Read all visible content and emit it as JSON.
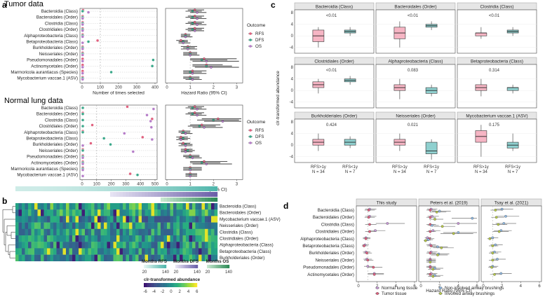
{
  "panel_a": {
    "letter": "a",
    "tumor_title": "Tumor data",
    "normal_title": "Normal lung data",
    "rows": [
      "Bacteroidia (Class)",
      "Bacteroidales (Order)",
      "Clostridia (Class)",
      "Clostridiales (Order)",
      "Alphaproteobacteria (Class)",
      "Betaproteobacteria (Class)",
      "Burkholderiales (Order)",
      "Neisseriales (Order)",
      "Pseudomonadales (Order)",
      "Actinomycetales (Order)",
      "Marmoricola aurantiacus (Species)",
      "Mycobacterium vaccae.1 (ASV)"
    ],
    "sel_xlabel": "Number of times selected",
    "hr_xlabel": "Hazard Ratio (95% CI)",
    "sel_ticks_tumor": [
      "0",
      "100",
      "200",
      "300",
      "400"
    ],
    "sel_ticks_normal": [
      "0",
      "100",
      "200",
      "300",
      "400",
      "500"
    ],
    "hr_ticks": [
      "0",
      "1",
      "2",
      "3"
    ],
    "legend_title": "Outcome",
    "legend_items": [
      {
        "name": "RFS",
        "color": "#e0607e"
      },
      {
        "name": "DFS",
        "color": "#3aa88a"
      },
      {
        "name": "OS",
        "color": "#b57cc8"
      }
    ]
  },
  "panel_b": {
    "letter": "b",
    "rows": [
      "Bacteroidia (Class)",
      "Bacteroidales (Order)",
      "Mycobacterium vaccae.1 (ASV)",
      "Neisseriales (Order)",
      "Clostridia (Class)",
      "Clostridiales (Order)",
      "Alphaproteobacteria (Class)",
      "Betaproteobacteria (Class)",
      "Burkholderiales (Order)"
    ],
    "legend_rfs": "Months RFS",
    "legend_dfs": "Months DFS",
    "legend_os": "Months OS",
    "month_ticks": [
      "20",
      "140"
    ],
    "clr_title": "clr-transformed abundance",
    "clr_ticks": [
      "-6",
      "-4",
      "-2",
      "0",
      "2",
      "4",
      "6"
    ]
  },
  "panel_c": {
    "letter": "c",
    "ylabel": "clr-transformed abundance",
    "yticks": [
      "8",
      "4",
      "0",
      "-4"
    ],
    "xcats": [
      "RFS>1y",
      "RFS<1y"
    ],
    "ncats": [
      "N = 34",
      "N = 7"
    ],
    "facets": [
      {
        "name": "Bacteroidia (Class)",
        "p": "<0.01"
      },
      {
        "name": "Bacteroidales (Order)",
        "p": "<0.01"
      },
      {
        "name": "Clostridia (Class)",
        "p": "<0.01"
      },
      {
        "name": "Clostridiales (Order)",
        "p": "<0.01"
      },
      {
        "name": "Alphaproteobacteria (Class)",
        "p": "0.083"
      },
      {
        "name": "Betaproteobacteria (Class)",
        "p": "0.314"
      },
      {
        "name": "Burkholderiales (Order)",
        "p": "0.424"
      },
      {
        "name": "Neisseriales (Order)",
        "p": "0.021"
      },
      {
        "name": "Mycobacterium vaccae.1 (ASV)",
        "p": "0.175"
      }
    ]
  },
  "panel_d": {
    "letter": "d",
    "studies": [
      "This study",
      "Peters et al. (2019)",
      "Tsay et al. (2021)"
    ],
    "rows": [
      "Bacteroidia (Class)",
      "Bacteroidales (Order)",
      "Clostridia (Class)",
      "Clostridiales (Order)",
      "Alphaproteobacteria (Class)",
      "Betaproteobacteria (Class)",
      "Burkholderiales (Order)",
      "Neisseriales (Order)",
      "Pseudomonadales (Order)",
      "Actinomycetales (Order)"
    ],
    "xticks": [
      "0",
      "2",
      "4",
      "6"
    ],
    "xlabel": "Hazard Ratio (95% CI)",
    "legend_items": [
      {
        "name": "Normal lung tissue",
        "color": "#c79ad6"
      },
      {
        "name": "Non-involved airway brushings",
        "color": "#8fb8e0"
      },
      {
        "name": "Tumor tissue",
        "color": "#e0607e"
      },
      {
        "name": "Involved airway brushings",
        "color": "#b7c94a"
      }
    ]
  },
  "chart_data": [
    {
      "type": "scatter",
      "title": "Tumor data",
      "xlabel": "Number of times selected",
      "categories": [
        "Bacteroidia (Class)",
        "Bacteroidales (Order)",
        "Clostridia (Class)",
        "Clostridiales (Order)",
        "Alphaproteobacteria (Class)",
        "Betaproteobacteria (Class)",
        "Burkholderiales (Order)",
        "Neisseriales (Order)",
        "Pseudomonadales (Order)",
        "Actinomycetales (Order)",
        "Marmoricola aurantiacus (Species)",
        "Mycobacterium vaccae.1 (ASV)"
      ],
      "xlim": [
        0,
        400
      ],
      "series": [
        {
          "name": "RFS",
          "values": [
            5,
            3,
            3,
            3,
            3,
            85,
            3,
            3,
            3,
            3,
            3,
            3
          ]
        },
        {
          "name": "DFS",
          "values": [
            3,
            3,
            3,
            3,
            3,
            35,
            3,
            3,
            390,
            385,
            160,
            3
          ]
        },
        {
          "name": "OS",
          "values": [
            35,
            3,
            3,
            3,
            3,
            3,
            3,
            3,
            3,
            3,
            3,
            3
          ]
        }
      ]
    },
    {
      "type": "scatter",
      "title": "Normal lung data",
      "xlabel": "Number of times selected",
      "categories": [
        "Bacteroidia (Class)",
        "Bacteroidales (Order)",
        "Clostridia (Class)",
        "Clostridiales (Order)",
        "Alphaproteobacteria (Class)",
        "Betaproteobacteria (Class)",
        "Burkholderiales (Order)",
        "Neisseriales (Order)",
        "Pseudomonadales (Order)",
        "Actinomycetales (Order)",
        "Marmoricola aurantiacus (Species)",
        "Mycobacterium vaccae.1 (ASV)"
      ],
      "xlim": [
        0,
        500
      ],
      "series": [
        {
          "name": "RFS",
          "values": [
            310,
            5,
            480,
            70,
            5,
            415,
            60,
            5,
            5,
            5,
            5,
            330
          ]
        },
        {
          "name": "DFS",
          "values": [
            5,
            5,
            5,
            5,
            5,
            150,
            195,
            5,
            5,
            5,
            5,
            380
          ]
        },
        {
          "name": "OS",
          "values": [
            490,
            445,
            470,
            475,
            290,
            480,
            5,
            350,
            5,
            5,
            5,
            5
          ]
        }
      ]
    },
    {
      "type": "scatter",
      "title": "Tumor data hazard ratios",
      "xlabel": "Hazard Ratio (95% CI)",
      "xlim": [
        0,
        3.2
      ],
      "categories": [
        "Bacteroidia (Class)",
        "Bacteroidales (Order)",
        "Clostridia (Class)",
        "Clostridiales (Order)",
        "Alphaproteobacteria (Class)",
        "Betaproteobacteria (Class)",
        "Burkholderiales (Order)",
        "Neisseriales (Order)",
        "Pseudomonadales (Order)",
        "Actinomycetales (Order)",
        "Marmoricola aurantiacus (Species)",
        "Mycobacterium vaccae.1 (ASV)"
      ],
      "series": [
        {
          "name": "RFS",
          "values": [
            1.2,
            1.2,
            1.2,
            1.2,
            0.8,
            0.6,
            0.9,
            1.0,
            1.6,
            1.7,
            1.1,
            1.0
          ],
          "lo": [
            0.9,
            0.9,
            0.9,
            0.9,
            0.6,
            0.4,
            0.6,
            0.7,
            1.0,
            1.1,
            0.7,
            0.7
          ],
          "hi": [
            1.6,
            1.6,
            1.6,
            1.6,
            1.0,
            0.9,
            1.3,
            1.3,
            3.0,
            2.4,
            1.7,
            1.4
          ]
        },
        {
          "name": "DFS",
          "values": [
            1.1,
            1.1,
            1.1,
            1.1,
            0.8,
            0.7,
            0.9,
            1.0,
            1.5,
            1.7,
            1.0,
            1.0
          ],
          "lo": [
            0.8,
            0.8,
            0.8,
            0.8,
            0.6,
            0.5,
            0.7,
            0.7,
            1.0,
            1.1,
            0.7,
            0.7
          ],
          "hi": [
            1.5,
            1.5,
            1.5,
            1.5,
            1.0,
            0.9,
            1.2,
            1.3,
            2.6,
            2.8,
            1.5,
            1.4
          ]
        },
        {
          "name": "OS",
          "values": [
            1.3,
            1.3,
            1.3,
            1.2,
            0.8,
            0.7,
            0.9,
            1.0,
            1.7,
            1.9,
            1.1,
            1.1
          ],
          "lo": [
            1.0,
            1.0,
            1.0,
            0.9,
            0.6,
            0.5,
            0.6,
            0.7,
            1.1,
            1.2,
            0.7,
            0.8
          ],
          "hi": [
            1.7,
            1.7,
            1.7,
            1.6,
            1.1,
            1.0,
            1.3,
            1.4,
            3.1,
            3.1,
            1.7,
            1.5
          ]
        }
      ]
    },
    {
      "type": "scatter",
      "title": "Normal lung data hazard ratios",
      "xlabel": "Hazard Ratio (95% CI)",
      "xlim": [
        0,
        3.2
      ],
      "categories": [
        "Bacteroidia (Class)",
        "Bacteroidales (Order)",
        "Clostridia (Class)",
        "Clostridiales (Order)",
        "Alphaproteobacteria (Class)",
        "Betaproteobacteria (Class)",
        "Burkholderiales (Order)",
        "Neisseriales (Order)",
        "Pseudomonadales (Order)",
        "Actinomycetales (Order)",
        "Marmoricola aurantiacus (Species)",
        "Mycobacterium vaccae.1 (ASV)"
      ],
      "series": [
        {
          "name": "RFS",
          "values": [
            1.2,
            1.2,
            2.2,
            1.5,
            0.7,
            0.6,
            0.7,
            0.8,
            1.0,
            1.6,
            1.0,
            1.0
          ],
          "lo": [
            0.9,
            0.9,
            1.5,
            1.0,
            0.5,
            0.4,
            0.5,
            0.6,
            0.7,
            1.0,
            0.7,
            0.8
          ],
          "hi": [
            1.6,
            1.6,
            3.2,
            2.3,
            1.0,
            0.9,
            1.0,
            1.1,
            1.4,
            2.6,
            1.5,
            1.3
          ]
        },
        {
          "name": "DFS",
          "values": [
            1.1,
            1.1,
            2.0,
            1.4,
            0.7,
            0.7,
            0.8,
            0.9,
            1.0,
            1.5,
            1.0,
            1.0
          ],
          "lo": [
            0.8,
            0.8,
            1.3,
            0.9,
            0.5,
            0.5,
            0.6,
            0.6,
            0.7,
            1.0,
            0.7,
            0.8
          ],
          "hi": [
            1.5,
            1.5,
            3.1,
            2.1,
            1.0,
            1.0,
            1.1,
            1.2,
            1.4,
            2.3,
            1.5,
            1.3
          ]
        },
        {
          "name": "OS",
          "values": [
            1.3,
            1.3,
            2.4,
            1.6,
            0.8,
            0.6,
            0.8,
            0.8,
            1.1,
            1.7,
            1.0,
            1.0
          ],
          "lo": [
            1.0,
            1.0,
            1.6,
            1.1,
            0.6,
            0.4,
            0.5,
            0.6,
            0.8,
            1.1,
            0.7,
            0.8
          ],
          "hi": [
            1.7,
            1.7,
            3.2,
            2.4,
            1.1,
            0.9,
            1.1,
            1.1,
            1.5,
            2.8,
            1.5,
            1.3
          ]
        }
      ]
    },
    {
      "type": "box",
      "ylabel": "clr-transformed abundance",
      "categories": [
        "RFS>1y",
        "RFS<1y"
      ],
      "ylim": [
        -6,
        9
      ],
      "facets": [
        {
          "name": "Bacteroidia (Class)",
          "boxes": [
            [
              -4,
              -2,
              0,
              2,
              3
            ],
            [
              0,
              1,
              1.5,
              2,
              3
            ]
          ]
        },
        {
          "name": "Bacteroidales (Order)",
          "boxes": [
            [
              -4,
              -1,
              1,
              3,
              5
            ],
            [
              2,
              3,
              3.5,
              4,
              5
            ]
          ]
        },
        {
          "name": "Clostridia (Class)",
          "boxes": [
            [
              -1,
              0,
              1,
              1,
              3
            ],
            [
              0,
              1,
              1.5,
              2,
              3
            ]
          ]
        },
        {
          "name": "Clostridiales (Order)",
          "boxes": [
            [
              -1,
              1,
              2,
              3,
              4
            ],
            [
              2,
              3,
              3.5,
              4,
              5
            ]
          ]
        },
        {
          "name": "Alphaproteobacteria (Class)",
          "boxes": [
            [
              -3,
              0,
              1,
              2,
              4
            ],
            [
              -2,
              -1,
              0,
              1,
              2
            ]
          ]
        },
        {
          "name": "Betaproteobacteria (Class)",
          "boxes": [
            [
              -2,
              0,
              1,
              2,
              4
            ],
            [
              -1,
              0,
              1,
              1,
              2
            ]
          ]
        },
        {
          "name": "Burkholderiales (Order)",
          "boxes": [
            [
              -2,
              0,
              1,
              2,
              4
            ],
            [
              -1,
              0,
              1,
              2,
              3
            ]
          ]
        },
        {
          "name": "Neisseriales (Order)",
          "boxes": [
            [
              -2,
              0,
              1,
              2,
              4
            ],
            [
              -5,
              -3,
              -2,
              1,
              2
            ]
          ]
        },
        {
          "name": "Mycobacterium vaccae.1 (ASV)",
          "boxes": [
            [
              -4,
              1,
              3,
              5,
              7
            ],
            [
              -2,
              -1,
              0,
              1,
              4
            ]
          ]
        }
      ]
    },
    {
      "type": "scatter",
      "xlabel": "Hazard Ratio (95% CI)",
      "xlim": [
        0,
        6
      ],
      "categories": [
        "Bacteroidia (Class)",
        "Bacteroidales (Order)",
        "Clostridia (Class)",
        "Clostridiales (Order)",
        "Alphaproteobacteria (Class)",
        "Betaproteobacteria (Class)",
        "Burkholderiales (Order)",
        "Neisseriales (Order)",
        "Pseudomonadales (Order)",
        "Actinomycetales (Order)"
      ],
      "facets": [
        {
          "name": "This study",
          "series": [
            {
              "name": "Normal lung tissue",
              "values": [
                1.2,
                1.2,
                3.1,
                1.8,
                0.8,
                0.7,
                0.8,
                0.9,
                1.0,
                1.7
              ]
            },
            {
              "name": "Tumor tissue",
              "values": [
                1.1,
                1.1,
                1.2,
                1.2,
                0.8,
                0.6,
                0.9,
                1.0,
                1.6,
                1.7
              ]
            }
          ]
        },
        {
          "name": "Peters et al. (2019)",
          "series": [
            {
              "name": "Normal lung tissue",
              "values": [
                1.1,
                1.2,
                4.0,
                1.3,
                0.7,
                1.0,
                1.1,
                1.0,
                1.0,
                1.1
              ]
            },
            {
              "name": "Tumor tissue",
              "values": [
                1.0,
                1.0,
                1.0,
                1.0,
                0.9,
                1.1,
                1.0,
                1.0,
                1.0,
                1.0
              ]
            },
            {
              "name": "Non-involved airway brushings",
              "values": [
                2.0,
                5.5,
                1.2,
                4.0,
                0.8,
                1.8,
                1.9,
                1.0,
                1.5,
                1.5
              ]
            },
            {
              "name": "Involved airway brushings",
              "values": [
                1.7,
                1.5,
                2.3,
                3.5,
                0.5,
                2.2,
                1.8,
                1.0,
                1.3,
                1.3
              ]
            }
          ]
        },
        {
          "name": "Tsay et al. (2021)",
          "series": [
            {
              "name": "Non-involved airway brushings",
              "values": [
                2.0,
                2.4,
                2.2,
                1.9,
                1.0,
                1.3,
                1.2,
                1.5,
                1.0,
                1.9
              ]
            },
            {
              "name": "Involved airway brushings",
              "values": [
                1.3,
                1.4,
                1.6,
                1.7,
                0.7,
                1.0,
                1.0,
                1.0,
                0.9,
                1.2
              ]
            }
          ]
        }
      ]
    }
  ]
}
